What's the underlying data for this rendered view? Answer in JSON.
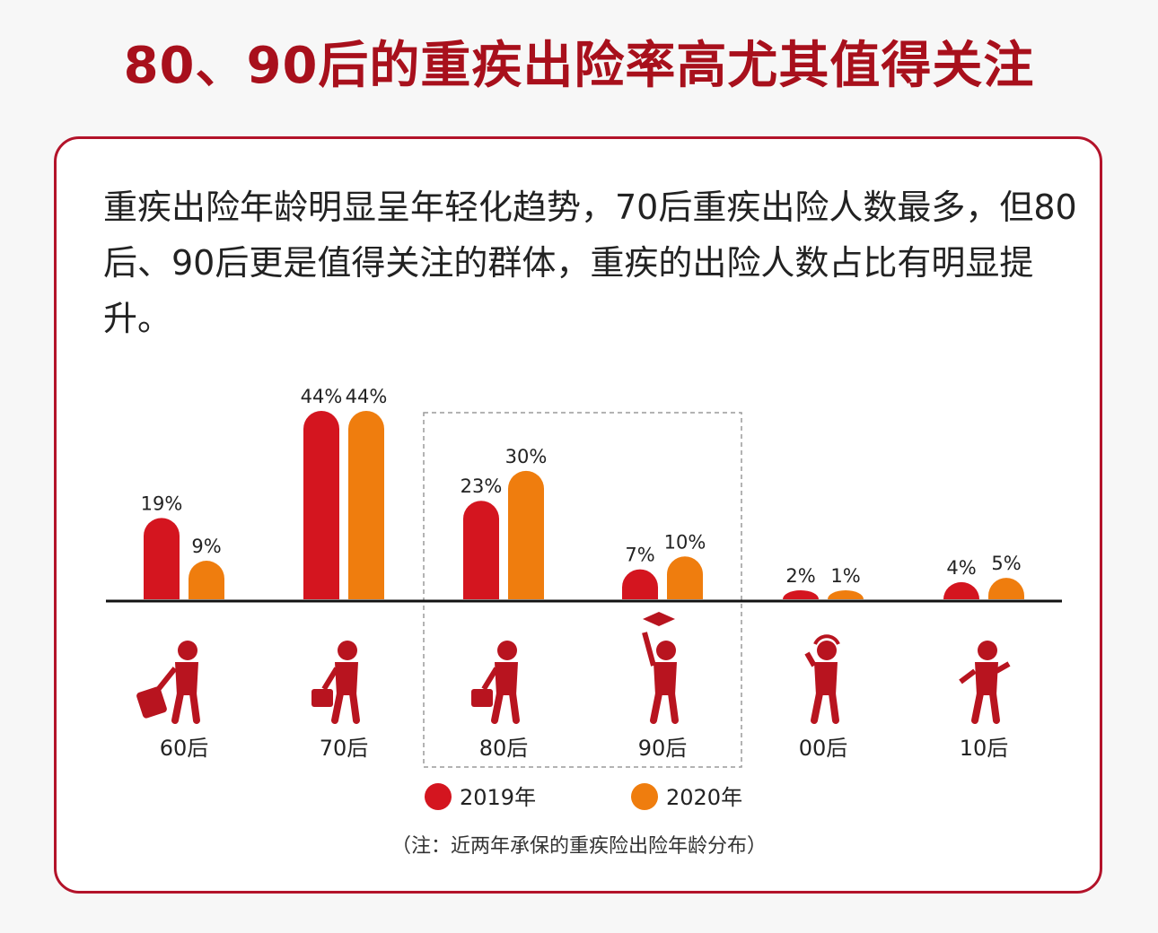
{
  "title": "80、90后的重疾出险率高尤其值得关注",
  "intro": "重疾出险年龄明显呈年轻化趋势，70后重疾出险人数最多，但80后、90后更是值得关注的群体，重疾的出险人数占比有明显提升。",
  "note": "（注：近两年承保的重疾险出险年龄分布）",
  "colors": {
    "accent": "#a8101c",
    "series2019": "#d4151f",
    "series2020": "#ef7d0e"
  },
  "chart_data": {
    "type": "bar",
    "categories": [
      "60后",
      "70后",
      "80后",
      "90后",
      "00后",
      "10后"
    ],
    "series": [
      {
        "name": "2019年",
        "values": [
          19,
          44,
          23,
          7,
          2,
          4
        ],
        "labels": [
          "19%",
          "44%",
          "23%",
          "7%",
          "2%",
          "4%"
        ]
      },
      {
        "name": "2020年",
        "values": [
          9,
          44,
          30,
          10,
          1,
          5
        ],
        "labels": [
          "9%",
          "44%",
          "30%",
          "10%",
          "1%",
          "5%"
        ]
      }
    ],
    "ylim": [
      0,
      44
    ],
    "legend": "bottom-center",
    "highlight": [
      "80后",
      "90后"
    ],
    "icons": [
      "traveler-with-suitcase-icon",
      "walking-with-briefcase-icon",
      "walking-with-briefcase-icon",
      "graduate-icon",
      "child-with-headphones-icon",
      "running-child-icon"
    ]
  }
}
